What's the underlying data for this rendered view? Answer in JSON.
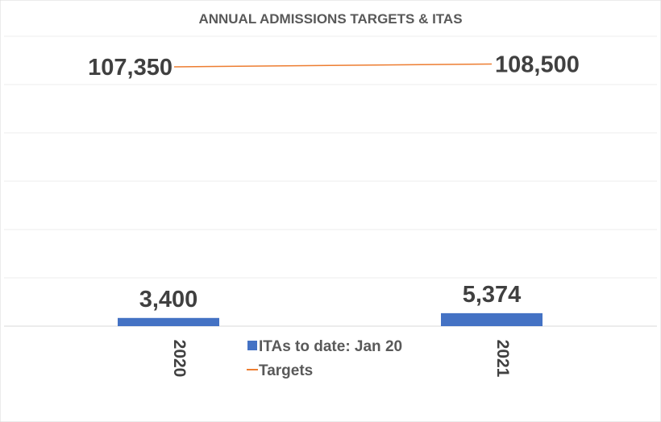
{
  "chart_data": {
    "type": "bar",
    "title": "ANNUAL ADMISSIONS TARGETS & ITAS",
    "categories": [
      "2020",
      "2021"
    ],
    "series": [
      {
        "name": "ITAs to date: Jan 20",
        "kind": "bar",
        "values": [
          3400,
          5374
        ],
        "labels": [
          "3,400",
          "5,374"
        ],
        "color": "#4472C4"
      },
      {
        "name": "Targets",
        "kind": "line",
        "values": [
          107350,
          108500
        ],
        "labels": [
          "107,350",
          "108,500"
        ],
        "color": "#ED7D31"
      }
    ],
    "ylim": [
      0,
      120000
    ],
    "ygrid_step": 20000,
    "grid": true,
    "y_axis_labels_shown": false,
    "legend_position": "bottom-center"
  }
}
